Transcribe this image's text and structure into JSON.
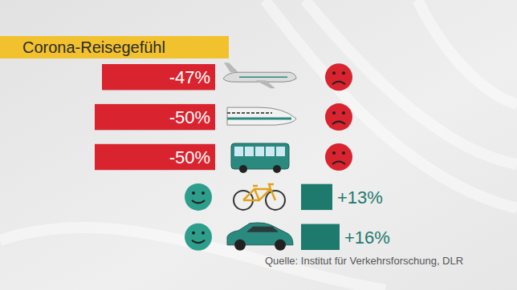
{
  "chart_data": {
    "type": "bar",
    "title": "Corona-Reisegefühl",
    "orientation": "horizontal",
    "categories": [
      null,
      null,
      null,
      null,
      null
    ],
    "values": [
      -47,
      -50,
      -50,
      13,
      16
    ],
    "value_labels": [
      "-47%",
      "-50%",
      "-50%",
      "+13%",
      "+16%"
    ],
    "colors": [
      "#d9232e",
      "#d9232e",
      "#d9232e",
      "#1f7a6e",
      "#1f7a6e"
    ],
    "data_labels": true,
    "tick_labels": false,
    "annotations": [
      "Quelle: Institut für Verkehrsforschung, DLR"
    ]
  }
}
